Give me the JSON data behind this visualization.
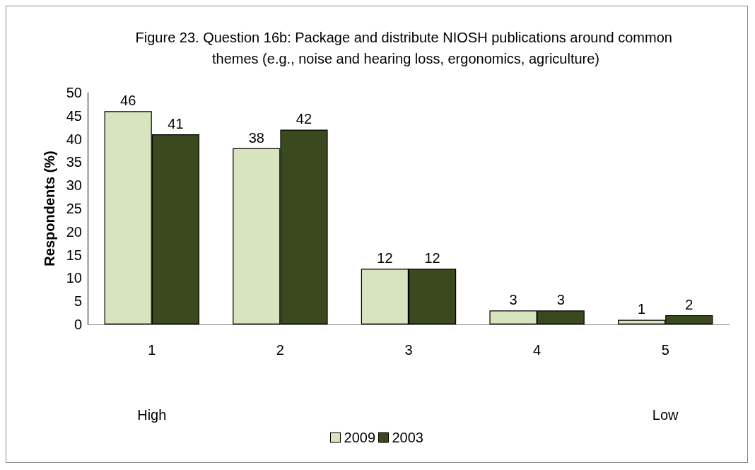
{
  "chart_data": {
    "type": "bar",
    "title": "Figure 23. Question 16b: Package and distribute NIOSH publications around common themes (e.g., noise and hearing loss, ergonomics, agriculture)",
    "ylabel": "Respondents (%)",
    "categories": [
      "1",
      "2",
      "3",
      "4",
      "5"
    ],
    "series": [
      {
        "name": "2009",
        "color": "#d7e4bd",
        "values": [
          46,
          38,
          12,
          3,
          1
        ]
      },
      {
        "name": "2003",
        "color": "#3b4a1e",
        "values": [
          41,
          42,
          12,
          3,
          2
        ]
      }
    ],
    "ylim": [
      0,
      50
    ],
    "yticks": [
      0,
      5,
      10,
      15,
      20,
      25,
      30,
      35,
      40,
      45,
      50
    ],
    "grid": false,
    "legend": "bottom",
    "data_labels": true,
    "annotations": [
      "High",
      "Low"
    ]
  }
}
